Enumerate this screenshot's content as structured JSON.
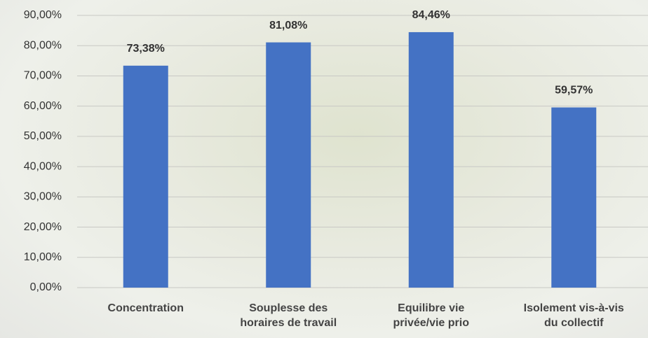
{
  "chart_data": {
    "type": "bar",
    "categories": [
      "Concentration",
      "Souplesse des\nhoraires de travail",
      "Equilibre vie\nprivée/vie prio",
      "Isolement vis-à-vis\ndu collectif"
    ],
    "values": [
      73.38,
      81.08,
      84.46,
      59.57
    ],
    "value_labels": [
      "73,38%",
      "81,08%",
      "84,46%",
      "59,57%"
    ],
    "color": "#4472c4",
    "ylim": [
      0,
      90
    ],
    "yticks": [
      {
        "value": 0,
        "label": "0,00%"
      },
      {
        "value": 10,
        "label": "10,00%"
      },
      {
        "value": 20,
        "label": "20,00%"
      },
      {
        "value": 30,
        "label": "30,00%"
      },
      {
        "value": 40,
        "label": "40,00%"
      },
      {
        "value": 50,
        "label": "50,00%"
      },
      {
        "value": 60,
        "label": "60,00%"
      },
      {
        "value": 70,
        "label": "70,00%"
      },
      {
        "value": 80,
        "label": "80,00%"
      },
      {
        "value": 90,
        "label": "90,00%"
      }
    ],
    "grid": true
  }
}
